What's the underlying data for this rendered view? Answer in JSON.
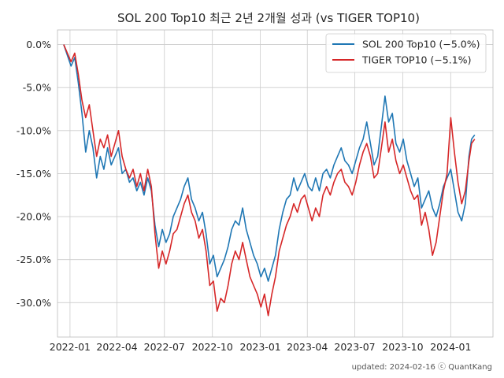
{
  "chart_data": {
    "type": "line",
    "title": "SOL 200 Top10 최근 2년 2개월 성과 (vs TIGER TOP10)",
    "xlabel": "",
    "ylabel": "",
    "x_ticks": [
      "2022-01",
      "2022-04",
      "2022-07",
      "2022-10",
      "2023-01",
      "2023-04",
      "2023-07",
      "2023-10",
      "2024-01"
    ],
    "y_ticks": [
      "0.0%",
      "-5.0%",
      "-10.0%",
      "-15.0%",
      "-20.0%",
      "-25.0%",
      "-30.0%"
    ],
    "xlim": [
      "2021-12-08",
      "2024-03-22"
    ],
    "ylim": [
      -34.0,
      1.7
    ],
    "grid": true,
    "legend_position": "top-right",
    "footer": "updated: 2024-02-16 ⓒ QuantKang",
    "series": [
      {
        "name": "SOL 200 Top10 (−5.0%)",
        "color": "#1f77b4",
        "points": [
          [
            "2021-12-20",
            0.0
          ],
          [
            "2022-01-03",
            -2.5
          ],
          [
            "2022-01-10",
            -1.5
          ],
          [
            "2022-01-17",
            -4.5
          ],
          [
            "2022-01-24",
            -8.0
          ],
          [
            "2022-01-31",
            -12.5
          ],
          [
            "2022-02-07",
            -10.0
          ],
          [
            "2022-02-14",
            -12.0
          ],
          [
            "2022-02-21",
            -15.5
          ],
          [
            "2022-02-28",
            -13.0
          ],
          [
            "2022-03-07",
            -14.5
          ],
          [
            "2022-03-14",
            -12.0
          ],
          [
            "2022-03-21",
            -14.0
          ],
          [
            "2022-03-28",
            -13.0
          ],
          [
            "2022-04-04",
            -12.0
          ],
          [
            "2022-04-11",
            -15.0
          ],
          [
            "2022-04-18",
            -14.5
          ],
          [
            "2022-04-25",
            -16.0
          ],
          [
            "2022-05-02",
            -15.5
          ],
          [
            "2022-05-09",
            -17.0
          ],
          [
            "2022-05-16",
            -16.0
          ],
          [
            "2022-05-23",
            -17.5
          ],
          [
            "2022-05-30",
            -15.5
          ],
          [
            "2022-06-06",
            -17.0
          ],
          [
            "2022-06-13",
            -21.0
          ],
          [
            "2022-06-20",
            -23.5
          ],
          [
            "2022-06-27",
            -21.5
          ],
          [
            "2022-07-04",
            -23.0
          ],
          [
            "2022-07-11",
            -22.0
          ],
          [
            "2022-07-18",
            -20.0
          ],
          [
            "2022-07-25",
            -19.0
          ],
          [
            "2022-08-01",
            -18.0
          ],
          [
            "2022-08-08",
            -16.5
          ],
          [
            "2022-08-15",
            -15.5
          ],
          [
            "2022-08-22",
            -18.0
          ],
          [
            "2022-08-29",
            -19.0
          ],
          [
            "2022-09-05",
            -20.5
          ],
          [
            "2022-09-12",
            -19.5
          ],
          [
            "2022-09-19",
            -22.0
          ],
          [
            "2022-09-26",
            -25.5
          ],
          [
            "2022-10-03",
            -24.5
          ],
          [
            "2022-10-10",
            -27.0
          ],
          [
            "2022-10-17",
            -26.0
          ],
          [
            "2022-10-24",
            -25.0
          ],
          [
            "2022-10-31",
            -23.5
          ],
          [
            "2022-11-07",
            -21.5
          ],
          [
            "2022-11-14",
            -20.5
          ],
          [
            "2022-11-21",
            -21.0
          ],
          [
            "2022-11-28",
            -19.0
          ],
          [
            "2022-12-05",
            -21.5
          ],
          [
            "2022-12-12",
            -23.0
          ],
          [
            "2022-12-19",
            -24.5
          ],
          [
            "2022-12-26",
            -25.5
          ],
          [
            "2023-01-02",
            -27.0
          ],
          [
            "2023-01-09",
            -26.0
          ],
          [
            "2023-01-16",
            -27.5
          ],
          [
            "2023-01-23",
            -26.0
          ],
          [
            "2023-01-30",
            -24.5
          ],
          [
            "2023-02-06",
            -21.5
          ],
          [
            "2023-02-13",
            -19.5
          ],
          [
            "2023-02-20",
            -18.0
          ],
          [
            "2023-02-27",
            -17.5
          ],
          [
            "2023-03-06",
            -15.5
          ],
          [
            "2023-03-13",
            -17.0
          ],
          [
            "2023-03-20",
            -16.0
          ],
          [
            "2023-03-27",
            -15.0
          ],
          [
            "2023-04-03",
            -16.5
          ],
          [
            "2023-04-10",
            -17.0
          ],
          [
            "2023-04-17",
            -15.5
          ],
          [
            "2023-04-24",
            -17.0
          ],
          [
            "2023-05-01",
            -15.0
          ],
          [
            "2023-05-08",
            -14.5
          ],
          [
            "2023-05-15",
            -15.5
          ],
          [
            "2023-05-22",
            -14.0
          ],
          [
            "2023-05-29",
            -13.0
          ],
          [
            "2023-06-05",
            -12.0
          ],
          [
            "2023-06-12",
            -13.5
          ],
          [
            "2023-06-19",
            -14.0
          ],
          [
            "2023-06-26",
            -15.0
          ],
          [
            "2023-07-03",
            -13.5
          ],
          [
            "2023-07-10",
            -12.0
          ],
          [
            "2023-07-17",
            -11.0
          ],
          [
            "2023-07-24",
            -9.0
          ],
          [
            "2023-07-31",
            -11.5
          ],
          [
            "2023-08-07",
            -14.0
          ],
          [
            "2023-08-14",
            -13.0
          ],
          [
            "2023-08-21",
            -9.5
          ],
          [
            "2023-08-28",
            -6.0
          ],
          [
            "2023-09-04",
            -9.0
          ],
          [
            "2023-09-11",
            -8.0
          ],
          [
            "2023-09-18",
            -11.5
          ],
          [
            "2023-09-25",
            -12.5
          ],
          [
            "2023-10-02",
            -11.0
          ],
          [
            "2023-10-09",
            -13.5
          ],
          [
            "2023-10-16",
            -15.0
          ],
          [
            "2023-10-23",
            -16.5
          ],
          [
            "2023-10-30",
            -15.5
          ],
          [
            "2023-11-06",
            -19.0
          ],
          [
            "2023-11-13",
            -18.0
          ],
          [
            "2023-11-20",
            -17.0
          ],
          [
            "2023-11-27",
            -19.0
          ],
          [
            "2023-12-04",
            -20.0
          ],
          [
            "2023-12-11",
            -18.5
          ],
          [
            "2023-12-18",
            -16.5
          ],
          [
            "2023-12-25",
            -15.5
          ],
          [
            "2024-01-01",
            -14.5
          ],
          [
            "2024-01-08",
            -17.0
          ],
          [
            "2024-01-15",
            -19.5
          ],
          [
            "2024-01-22",
            -20.5
          ],
          [
            "2024-01-29",
            -18.5
          ],
          [
            "2024-02-05",
            -13.0
          ],
          [
            "2024-02-10",
            -11.0
          ],
          [
            "2024-02-16",
            -10.5
          ]
        ]
      },
      {
        "name": "TIGER TOP10 (−5.1%)",
        "color": "#d62728",
        "points": [
          [
            "2021-12-20",
            0.0
          ],
          [
            "2022-01-03",
            -2.0
          ],
          [
            "2022-01-10",
            -1.0
          ],
          [
            "2022-01-17",
            -3.5
          ],
          [
            "2022-01-24",
            -6.5
          ],
          [
            "2022-01-31",
            -8.5
          ],
          [
            "2022-02-07",
            -7.0
          ],
          [
            "2022-02-14",
            -10.0
          ],
          [
            "2022-02-21",
            -13.0
          ],
          [
            "2022-02-28",
            -11.0
          ],
          [
            "2022-03-07",
            -12.0
          ],
          [
            "2022-03-14",
            -10.5
          ],
          [
            "2022-03-21",
            -13.0
          ],
          [
            "2022-03-28",
            -11.5
          ],
          [
            "2022-04-04",
            -10.0
          ],
          [
            "2022-04-11",
            -13.0
          ],
          [
            "2022-04-18",
            -14.5
          ],
          [
            "2022-04-25",
            -15.5
          ],
          [
            "2022-05-02",
            -14.5
          ],
          [
            "2022-05-09",
            -16.5
          ],
          [
            "2022-05-16",
            -15.0
          ],
          [
            "2022-05-23",
            -17.0
          ],
          [
            "2022-05-30",
            -14.5
          ],
          [
            "2022-06-06",
            -16.5
          ],
          [
            "2022-06-13",
            -22.0
          ],
          [
            "2022-06-20",
            -26.0
          ],
          [
            "2022-06-27",
            -24.0
          ],
          [
            "2022-07-04",
            -25.5
          ],
          [
            "2022-07-11",
            -24.0
          ],
          [
            "2022-07-18",
            -22.0
          ],
          [
            "2022-07-25",
            -21.5
          ],
          [
            "2022-08-01",
            -20.0
          ],
          [
            "2022-08-08",
            -18.5
          ],
          [
            "2022-08-15",
            -17.5
          ],
          [
            "2022-08-22",
            -19.5
          ],
          [
            "2022-08-29",
            -20.5
          ],
          [
            "2022-09-05",
            -22.5
          ],
          [
            "2022-09-12",
            -21.5
          ],
          [
            "2022-09-19",
            -24.0
          ],
          [
            "2022-09-26",
            -28.0
          ],
          [
            "2022-10-03",
            -27.5
          ],
          [
            "2022-10-10",
            -31.0
          ],
          [
            "2022-10-17",
            -29.5
          ],
          [
            "2022-10-24",
            -30.0
          ],
          [
            "2022-10-31",
            -28.0
          ],
          [
            "2022-11-07",
            -25.5
          ],
          [
            "2022-11-14",
            -24.0
          ],
          [
            "2022-11-21",
            -25.0
          ],
          [
            "2022-11-28",
            -23.0
          ],
          [
            "2022-12-05",
            -25.0
          ],
          [
            "2022-12-12",
            -27.0
          ],
          [
            "2022-12-19",
            -28.0
          ],
          [
            "2022-12-26",
            -29.0
          ],
          [
            "2023-01-02",
            -30.5
          ],
          [
            "2023-01-09",
            -29.0
          ],
          [
            "2023-01-16",
            -31.5
          ],
          [
            "2023-01-23",
            -29.0
          ],
          [
            "2023-01-30",
            -27.0
          ],
          [
            "2023-02-06",
            -24.0
          ],
          [
            "2023-02-13",
            -22.5
          ],
          [
            "2023-02-20",
            -21.0
          ],
          [
            "2023-02-27",
            -20.0
          ],
          [
            "2023-03-06",
            -18.5
          ],
          [
            "2023-03-13",
            -19.5
          ],
          [
            "2023-03-20",
            -18.0
          ],
          [
            "2023-03-27",
            -17.5
          ],
          [
            "2023-04-03",
            -19.0
          ],
          [
            "2023-04-10",
            -20.5
          ],
          [
            "2023-04-17",
            -19.0
          ],
          [
            "2023-04-24",
            -20.0
          ],
          [
            "2023-05-01",
            -17.5
          ],
          [
            "2023-05-08",
            -16.5
          ],
          [
            "2023-05-15",
            -17.5
          ],
          [
            "2023-05-22",
            -16.0
          ],
          [
            "2023-05-29",
            -15.0
          ],
          [
            "2023-06-05",
            -14.5
          ],
          [
            "2023-06-12",
            -16.0
          ],
          [
            "2023-06-19",
            -16.5
          ],
          [
            "2023-06-26",
            -17.5
          ],
          [
            "2023-07-03",
            -16.0
          ],
          [
            "2023-07-10",
            -14.0
          ],
          [
            "2023-07-17",
            -12.5
          ],
          [
            "2023-07-24",
            -11.5
          ],
          [
            "2023-07-31",
            -13.0
          ],
          [
            "2023-08-07",
            -15.5
          ],
          [
            "2023-08-14",
            -15.0
          ],
          [
            "2023-08-21",
            -12.0
          ],
          [
            "2023-08-28",
            -9.0
          ],
          [
            "2023-09-04",
            -12.5
          ],
          [
            "2023-09-11",
            -11.0
          ],
          [
            "2023-09-18",
            -13.5
          ],
          [
            "2023-09-25",
            -15.0
          ],
          [
            "2023-10-02",
            -14.0
          ],
          [
            "2023-10-09",
            -15.5
          ],
          [
            "2023-10-16",
            -17.0
          ],
          [
            "2023-10-23",
            -18.0
          ],
          [
            "2023-10-30",
            -17.5
          ],
          [
            "2023-11-06",
            -21.0
          ],
          [
            "2023-11-13",
            -19.5
          ],
          [
            "2023-11-20",
            -21.5
          ],
          [
            "2023-11-27",
            -24.5
          ],
          [
            "2023-12-04",
            -23.0
          ],
          [
            "2023-12-11",
            -20.0
          ],
          [
            "2023-12-18",
            -17.0
          ],
          [
            "2023-12-25",
            -15.0
          ],
          [
            "2024-01-01",
            -8.5
          ],
          [
            "2024-01-08",
            -12.5
          ],
          [
            "2024-01-15",
            -16.0
          ],
          [
            "2024-01-22",
            -18.5
          ],
          [
            "2024-01-29",
            -17.0
          ],
          [
            "2024-02-05",
            -13.5
          ],
          [
            "2024-02-10",
            -11.5
          ],
          [
            "2024-02-16",
            -11.0
          ]
        ]
      }
    ]
  }
}
